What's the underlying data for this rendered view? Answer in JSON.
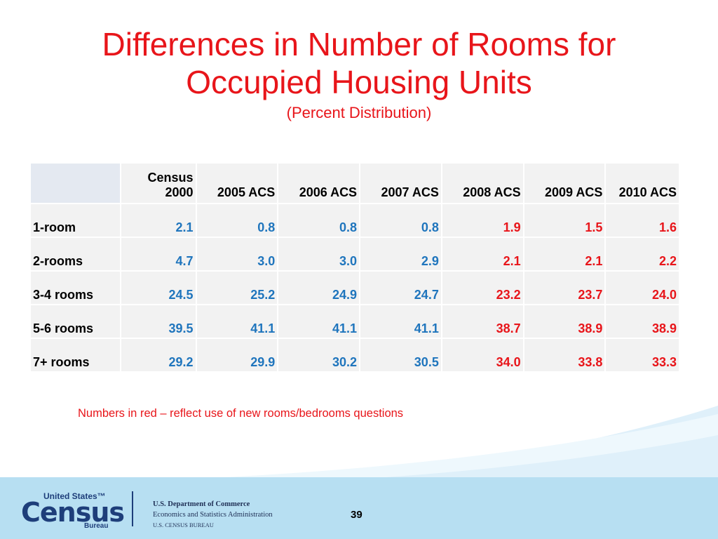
{
  "title": {
    "line1": "Differences in Number of Rooms for",
    "line2": "Occupied Housing Units",
    "subtitle": "(Percent Distribution)"
  },
  "table": {
    "headers": [
      {
        "top": "",
        "bottom": ""
      },
      {
        "top": "Census",
        "bottom": "2000"
      },
      {
        "top": "",
        "bottom": "2005 ACS"
      },
      {
        "top": "",
        "bottom": "2006 ACS"
      },
      {
        "top": "",
        "bottom": "2007 ACS"
      },
      {
        "top": "",
        "bottom": "2008 ACS"
      },
      {
        "top": "",
        "bottom": "2009 ACS"
      },
      {
        "top": "",
        "bottom": "2010 ACS"
      }
    ],
    "rows": [
      {
        "label": "1-room",
        "values": [
          "2.1",
          "0.8",
          "0.8",
          "0.8",
          "1.9",
          "1.5",
          "1.6"
        ]
      },
      {
        "label": "2-rooms",
        "values": [
          "4.7",
          "3.0",
          "3.0",
          "2.9",
          "2.1",
          "2.1",
          "2.2"
        ]
      },
      {
        "label": "3-4 rooms",
        "values": [
          "24.5",
          "25.2",
          "24.9",
          "24.7",
          "23.2",
          "23.7",
          "24.0"
        ]
      },
      {
        "label": "5-6 rooms",
        "values": [
          "39.5",
          "41.1",
          "41.1",
          "41.1",
          "38.7",
          "38.9",
          "38.9"
        ]
      },
      {
        "label": "7+ rooms",
        "values": [
          "29.2",
          "29.9",
          "30.2",
          "30.5",
          "34.0",
          "33.8",
          "33.3"
        ]
      }
    ],
    "colors": {
      "old": "#1f75bd",
      "new": "#e8151a"
    }
  },
  "note": "Numbers in red – reflect use of new rooms/bedrooms questions",
  "footer": {
    "logo_top": "United States™",
    "logo_main": "Census",
    "logo_bottom": "Bureau",
    "dept_line1": "U.S. Department of Commerce",
    "dept_line2": "Economics and Statistics Administration",
    "dept_line3": "U.S. CENSUS BUREAU",
    "page_number": "39"
  }
}
